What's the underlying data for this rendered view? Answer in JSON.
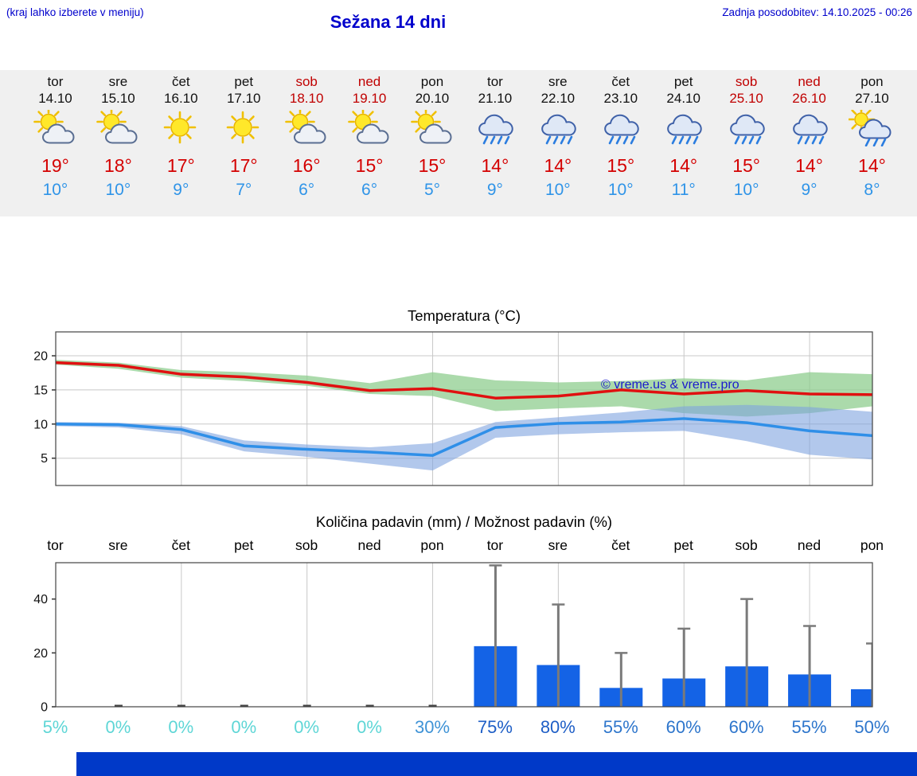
{
  "header": {
    "hint": "(kraj lahko izberete v meniju)",
    "title": "Sežana 14 dni",
    "updated": "Zadnja posodobitev: 14.10.2025 - 00:26"
  },
  "days": [
    {
      "name": "tor",
      "date": "14.10",
      "icon": "sun-cloud",
      "high": "19°",
      "low": "10°",
      "weekend": false
    },
    {
      "name": "sre",
      "date": "15.10",
      "icon": "sun-cloud",
      "high": "18°",
      "low": "10°",
      "weekend": false
    },
    {
      "name": "čet",
      "date": "16.10",
      "icon": "sunny",
      "high": "17°",
      "low": "9°",
      "weekend": false
    },
    {
      "name": "pet",
      "date": "17.10",
      "icon": "sunny",
      "high": "17°",
      "low": "7°",
      "weekend": false
    },
    {
      "name": "sob",
      "date": "18.10",
      "icon": "sun-cloud",
      "high": "16°",
      "low": "6°",
      "weekend": true
    },
    {
      "name": "ned",
      "date": "19.10",
      "icon": "sun-cloud",
      "high": "15°",
      "low": "6°",
      "weekend": true
    },
    {
      "name": "pon",
      "date": "20.10",
      "icon": "sun-cloud",
      "high": "15°",
      "low": "5°",
      "weekend": false
    },
    {
      "name": "tor",
      "date": "21.10",
      "icon": "rain",
      "high": "14°",
      "low": "9°",
      "weekend": false
    },
    {
      "name": "sre",
      "date": "22.10",
      "icon": "rain",
      "high": "14°",
      "low": "10°",
      "weekend": false
    },
    {
      "name": "čet",
      "date": "23.10",
      "icon": "rain",
      "high": "15°",
      "low": "10°",
      "weekend": false
    },
    {
      "name": "pet",
      "date": "24.10",
      "icon": "rain",
      "high": "14°",
      "low": "11°",
      "weekend": false
    },
    {
      "name": "sob",
      "date": "25.10",
      "icon": "rain",
      "high": "15°",
      "low": "10°",
      "weekend": true
    },
    {
      "name": "ned",
      "date": "26.10",
      "icon": "rain",
      "high": "14°",
      "low": "9°",
      "weekend": true
    },
    {
      "name": "pon",
      "date": "27.10",
      "icon": "sun-rain",
      "high": "14°",
      "low": "8°",
      "weekend": false
    }
  ],
  "chart_data": [
    {
      "type": "line",
      "title": "Temperatura (°C)",
      "watermark": "© vreme.us & vreme.pro",
      "ylim": [
        1,
        23.5
      ],
      "yticks": [
        5,
        10,
        15,
        20
      ],
      "num_days": 14,
      "series": [
        {
          "name": "max-temp",
          "color": "#e01010",
          "values": [
            19,
            18.6,
            17.3,
            16.9,
            16.1,
            14.9,
            15.2,
            13.8,
            14.1,
            15.0,
            14.4,
            14.9,
            14.4,
            14.3
          ]
        },
        {
          "name": "min-temp",
          "color": "#2f8fe8",
          "values": [
            10,
            9.9,
            9.2,
            6.8,
            6.3,
            5.9,
            5.4,
            9.5,
            10.1,
            10.3,
            10.8,
            10.2,
            9.0,
            8.3
          ]
        }
      ],
      "bands": [
        {
          "name": "max-range",
          "color": "#8fce8f",
          "opacity": 0.75,
          "upper": [
            19.4,
            19.0,
            17.9,
            17.6,
            17.1,
            16.0,
            17.6,
            16.4,
            16.1,
            16.3,
            16.7,
            16.4,
            17.6,
            17.3
          ],
          "lower": [
            18.7,
            18.1,
            16.8,
            16.3,
            15.6,
            14.4,
            14.1,
            11.9,
            12.3,
            12.6,
            11.6,
            11.1,
            11.6,
            12.6
          ]
        },
        {
          "name": "min-range",
          "color": "#7fa3e0",
          "opacity": 0.6,
          "upper": [
            10.3,
            10.2,
            9.7,
            7.6,
            7.0,
            6.6,
            7.2,
            10.3,
            11.0,
            11.7,
            12.6,
            12.8,
            12.5,
            11.8
          ],
          "lower": [
            9.7,
            9.5,
            8.5,
            6.0,
            5.2,
            4.2,
            3.2,
            8.0,
            8.5,
            8.8,
            9.0,
            7.5,
            5.5,
            4.8
          ]
        }
      ]
    },
    {
      "type": "bar",
      "title": "Količina padavin (mm) / Možnost padavin (%)",
      "day_labels": [
        "tor",
        "sre",
        "čet",
        "pet",
        "sob",
        "ned",
        "pon",
        "tor",
        "sre",
        "čet",
        "pet",
        "sob",
        "ned",
        "pon"
      ],
      "ylim": [
        0,
        53.5
      ],
      "yticks": [
        0,
        20,
        40
      ],
      "bar_color": "#1463e6",
      "whisker_color": "#7a7a7a",
      "values_mm": [
        0,
        0,
        0,
        0,
        0,
        0,
        0,
        22.5,
        15.5,
        7,
        10.5,
        15,
        12,
        6.5
      ],
      "whisker_max_mm": [
        0,
        0,
        0,
        0,
        0,
        0,
        0,
        52.5,
        38,
        20,
        29,
        40,
        30,
        23.5
      ],
      "trace_days": [
        false,
        true,
        true,
        true,
        true,
        true,
        true,
        false,
        false,
        false,
        false,
        false,
        false,
        false
      ],
      "percents": [
        {
          "label": "5%",
          "color": "#5ed6d6"
        },
        {
          "label": "0%",
          "color": "#5ed6d6"
        },
        {
          "label": "0%",
          "color": "#5ed6d6"
        },
        {
          "label": "0%",
          "color": "#5ed6d6"
        },
        {
          "label": "0%",
          "color": "#5ed6d6"
        },
        {
          "label": "0%",
          "color": "#5ed6d6"
        },
        {
          "label": "30%",
          "color": "#3f93d6"
        },
        {
          "label": "75%",
          "color": "#1e5ec6"
        },
        {
          "label": "80%",
          "color": "#1e5ec6"
        },
        {
          "label": "55%",
          "color": "#2e76cc"
        },
        {
          "label": "60%",
          "color": "#2e76cc"
        },
        {
          "label": "60%",
          "color": "#2e76cc"
        },
        {
          "label": "55%",
          "color": "#2e76cc"
        },
        {
          "label": "50%",
          "color": "#2e76cc"
        }
      ]
    }
  ],
  "colors": {
    "accent_blue": "#0000cc",
    "high_red": "#d40000",
    "low_blue": "#2f94e8",
    "weekend_red": "#c00000",
    "strip_bg": "#f0f0f0",
    "footer_blue": "#0039c8"
  }
}
